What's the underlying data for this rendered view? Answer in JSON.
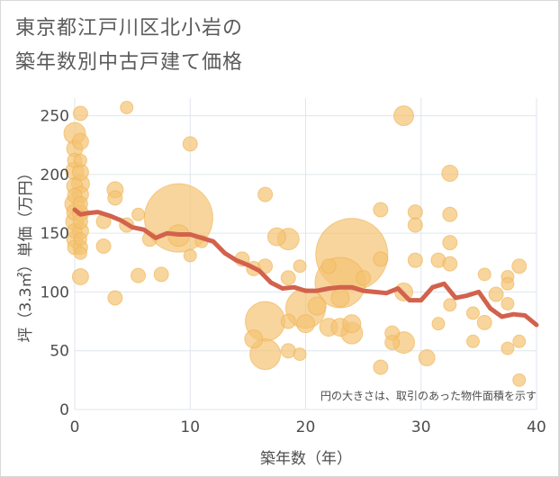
{
  "chart_data": {
    "type": "scatter",
    "title": [
      "東京都江戸川区北小岩の",
      "築年数別中古戸建て価格"
    ],
    "xlabel": "築年数（年）",
    "ylabel": "坪（3.3㎡）単価（万円）",
    "xlim": [
      0,
      40
    ],
    "ylim": [
      0,
      265
    ],
    "x_ticks": [
      0,
      10,
      20,
      30,
      40
    ],
    "y_ticks": [
      0,
      50,
      100,
      150,
      200,
      250
    ],
    "grid": true,
    "note": "円の大きさは、取引のあった物件面積を示す",
    "colors": {
      "bubble": "#f3c373",
      "bubble_stroke": "#f0b04e",
      "trend": "#d2624d",
      "grid": "#dfe6ee",
      "plot_bg": "#ffffff"
    },
    "series": [
      {
        "type": "bubble",
        "points": [
          {
            "x": 0,
            "y": 235,
            "s": 12
          },
          {
            "x": 0,
            "y": 222,
            "s": 9
          },
          {
            "x": 0,
            "y": 212,
            "s": 8
          },
          {
            "x": 0,
            "y": 203,
            "s": 10
          },
          {
            "x": 0,
            "y": 190,
            "s": 9
          },
          {
            "x": 0,
            "y": 182,
            "s": 8
          },
          {
            "x": 0,
            "y": 175,
            "s": 11
          },
          {
            "x": 0,
            "y": 168,
            "s": 9
          },
          {
            "x": 0,
            "y": 160,
            "s": 10
          },
          {
            "x": 0,
            "y": 152,
            "s": 8
          },
          {
            "x": 0,
            "y": 145,
            "s": 9
          },
          {
            "x": 0,
            "y": 138,
            "s": 8
          },
          {
            "x": 0.5,
            "y": 252,
            "s": 8
          },
          {
            "x": 0.5,
            "y": 228,
            "s": 9
          },
          {
            "x": 0.5,
            "y": 212,
            "s": 7
          },
          {
            "x": 0.5,
            "y": 202,
            "s": 9
          },
          {
            "x": 0.5,
            "y": 192,
            "s": 10
          },
          {
            "x": 0.5,
            "y": 183,
            "s": 9
          },
          {
            "x": 0.5,
            "y": 175,
            "s": 8
          },
          {
            "x": 0.5,
            "y": 167,
            "s": 9
          },
          {
            "x": 0.5,
            "y": 160,
            "s": 8
          },
          {
            "x": 0.5,
            "y": 152,
            "s": 9
          },
          {
            "x": 0.5,
            "y": 145,
            "s": 7
          },
          {
            "x": 0.5,
            "y": 138,
            "s": 8
          },
          {
            "x": 0.5,
            "y": 133,
            "s": 7
          },
          {
            "x": 0.5,
            "y": 113,
            "s": 9
          },
          {
            "x": 2.5,
            "y": 160,
            "s": 8
          },
          {
            "x": 2.5,
            "y": 139,
            "s": 8
          },
          {
            "x": 3.5,
            "y": 187,
            "s": 9
          },
          {
            "x": 3.5,
            "y": 180,
            "s": 8
          },
          {
            "x": 3.5,
            "y": 95,
            "s": 8
          },
          {
            "x": 4.5,
            "y": 257,
            "s": 7
          },
          {
            "x": 4.5,
            "y": 157,
            "s": 8
          },
          {
            "x": 5.5,
            "y": 166,
            "s": 7
          },
          {
            "x": 5.5,
            "y": 114,
            "s": 8
          },
          {
            "x": 6.5,
            "y": 145,
            "s": 8
          },
          {
            "x": 7.5,
            "y": 115,
            "s": 8
          },
          {
            "x": 9,
            "y": 163,
            "s": 38
          },
          {
            "x": 9,
            "y": 148,
            "s": 12
          },
          {
            "x": 10,
            "y": 226,
            "s": 8
          },
          {
            "x": 10,
            "y": 131,
            "s": 7
          },
          {
            "x": 11,
            "y": 143,
            "s": 7
          },
          {
            "x": 14.5,
            "y": 128,
            "s": 8
          },
          {
            "x": 15.5,
            "y": 120,
            "s": 8
          },
          {
            "x": 15.5,
            "y": 60,
            "s": 10
          },
          {
            "x": 16.5,
            "y": 183,
            "s": 8
          },
          {
            "x": 16.5,
            "y": 122,
            "s": 8
          },
          {
            "x": 16.5,
            "y": 75,
            "s": 22
          },
          {
            "x": 16.5,
            "y": 47,
            "s": 17
          },
          {
            "x": 17.5,
            "y": 147,
            "s": 10
          },
          {
            "x": 18.5,
            "y": 145,
            "s": 12
          },
          {
            "x": 18.5,
            "y": 112,
            "s": 8
          },
          {
            "x": 18.5,
            "y": 75,
            "s": 8
          },
          {
            "x": 18.5,
            "y": 50,
            "s": 8
          },
          {
            "x": 19.5,
            "y": 122,
            "s": 7
          },
          {
            "x": 19.5,
            "y": 47,
            "s": 7
          },
          {
            "x": 20,
            "y": 86,
            "s": 22
          },
          {
            "x": 20,
            "y": 73,
            "s": 10
          },
          {
            "x": 21,
            "y": 88,
            "s": 10
          },
          {
            "x": 22,
            "y": 122,
            "s": 8
          },
          {
            "x": 22,
            "y": 70,
            "s": 10
          },
          {
            "x": 23,
            "y": 108,
            "s": 28
          },
          {
            "x": 23,
            "y": 95,
            "s": 10
          },
          {
            "x": 23,
            "y": 70,
            "s": 10
          },
          {
            "x": 24,
            "y": 132,
            "s": 40
          },
          {
            "x": 24,
            "y": 73,
            "s": 10
          },
          {
            "x": 24,
            "y": 65,
            "s": 12
          },
          {
            "x": 25,
            "y": 112,
            "s": 8
          },
          {
            "x": 26.5,
            "y": 170,
            "s": 8
          },
          {
            "x": 26.5,
            "y": 128,
            "s": 8
          },
          {
            "x": 26.5,
            "y": 36,
            "s": 8
          },
          {
            "x": 27.5,
            "y": 65,
            "s": 8
          },
          {
            "x": 27.5,
            "y": 57,
            "s": 8
          },
          {
            "x": 28.5,
            "y": 250,
            "s": 11
          },
          {
            "x": 28.5,
            "y": 100,
            "s": 10
          },
          {
            "x": 28.5,
            "y": 57,
            "s": 12
          },
          {
            "x": 29.5,
            "y": 168,
            "s": 8
          },
          {
            "x": 29.5,
            "y": 157,
            "s": 8
          },
          {
            "x": 29.5,
            "y": 127,
            "s": 8
          },
          {
            "x": 30.5,
            "y": 44,
            "s": 9
          },
          {
            "x": 31.5,
            "y": 127,
            "s": 8
          },
          {
            "x": 31.5,
            "y": 73,
            "s": 7
          },
          {
            "x": 32.5,
            "y": 201,
            "s": 9
          },
          {
            "x": 32.5,
            "y": 166,
            "s": 8
          },
          {
            "x": 32.5,
            "y": 142,
            "s": 8
          },
          {
            "x": 32.5,
            "y": 124,
            "s": 8
          },
          {
            "x": 32.5,
            "y": 89,
            "s": 7
          },
          {
            "x": 34.5,
            "y": 82,
            "s": 7
          },
          {
            "x": 34.5,
            "y": 58,
            "s": 7
          },
          {
            "x": 35.5,
            "y": 115,
            "s": 7
          },
          {
            "x": 35.5,
            "y": 74,
            "s": 8
          },
          {
            "x": 36.5,
            "y": 98,
            "s": 8
          },
          {
            "x": 37.5,
            "y": 113,
            "s": 7
          },
          {
            "x": 37.5,
            "y": 107,
            "s": 7
          },
          {
            "x": 37.5,
            "y": 90,
            "s": 7
          },
          {
            "x": 37.5,
            "y": 52,
            "s": 7
          },
          {
            "x": 38.5,
            "y": 122,
            "s": 8
          },
          {
            "x": 38.5,
            "y": 58,
            "s": 7
          },
          {
            "x": 38.5,
            "y": 25,
            "s": 7
          }
        ]
      },
      {
        "type": "line",
        "points": [
          {
            "x": 0,
            "y": 170
          },
          {
            "x": 0.5,
            "y": 166
          },
          {
            "x": 1,
            "y": 167
          },
          {
            "x": 2,
            "y": 168
          },
          {
            "x": 3,
            "y": 165
          },
          {
            "x": 4,
            "y": 161
          },
          {
            "x": 5,
            "y": 155
          },
          {
            "x": 6,
            "y": 153
          },
          {
            "x": 7,
            "y": 146
          },
          {
            "x": 8,
            "y": 150
          },
          {
            "x": 9,
            "y": 149
          },
          {
            "x": 10,
            "y": 149
          },
          {
            "x": 11,
            "y": 146
          },
          {
            "x": 12,
            "y": 143
          },
          {
            "x": 13,
            "y": 133
          },
          {
            "x": 14,
            "y": 127
          },
          {
            "x": 15,
            "y": 123
          },
          {
            "x": 16,
            "y": 118
          },
          {
            "x": 17,
            "y": 108
          },
          {
            "x": 18,
            "y": 103
          },
          {
            "x": 19,
            "y": 104
          },
          {
            "x": 20,
            "y": 101
          },
          {
            "x": 21,
            "y": 101
          },
          {
            "x": 22,
            "y": 103
          },
          {
            "x": 23,
            "y": 104
          },
          {
            "x": 24,
            "y": 104
          },
          {
            "x": 25,
            "y": 101
          },
          {
            "x": 26,
            "y": 100
          },
          {
            "x": 27,
            "y": 99
          },
          {
            "x": 28,
            "y": 103
          },
          {
            "x": 29,
            "y": 93
          },
          {
            "x": 30,
            "y": 93
          },
          {
            "x": 31,
            "y": 104
          },
          {
            "x": 32,
            "y": 107
          },
          {
            "x": 33,
            "y": 95
          },
          {
            "x": 34,
            "y": 97
          },
          {
            "x": 35,
            "y": 100
          },
          {
            "x": 36,
            "y": 86
          },
          {
            "x": 37,
            "y": 79
          },
          {
            "x": 38,
            "y": 81
          },
          {
            "x": 39,
            "y": 80
          },
          {
            "x": 40,
            "y": 72
          }
        ]
      }
    ]
  }
}
